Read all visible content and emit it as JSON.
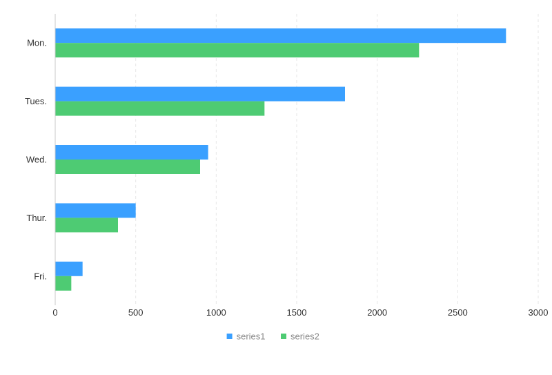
{
  "chart_data": {
    "type": "bar",
    "orientation": "horizontal",
    "categories": [
      "Mon.",
      "Tues.",
      "Wed.",
      "Thur.",
      "Fri."
    ],
    "series": [
      {
        "name": "series1",
        "values": [
          2800,
          1800,
          950,
          500,
          170
        ],
        "color": "#3aa0ff"
      },
      {
        "name": "series2",
        "values": [
          2260,
          1300,
          900,
          390,
          100
        ],
        "color": "#4ecb73"
      }
    ],
    "xlim": [
      0,
      3000
    ],
    "x_ticks": [
      0,
      500,
      1000,
      1500,
      2000,
      2500,
      3000
    ],
    "x_tick_labels": [
      "0",
      "500",
      "1000",
      "1500",
      "2000",
      "2500",
      "3000"
    ],
    "grid": "vertical-dashed",
    "legend_position": "bottom-center"
  }
}
